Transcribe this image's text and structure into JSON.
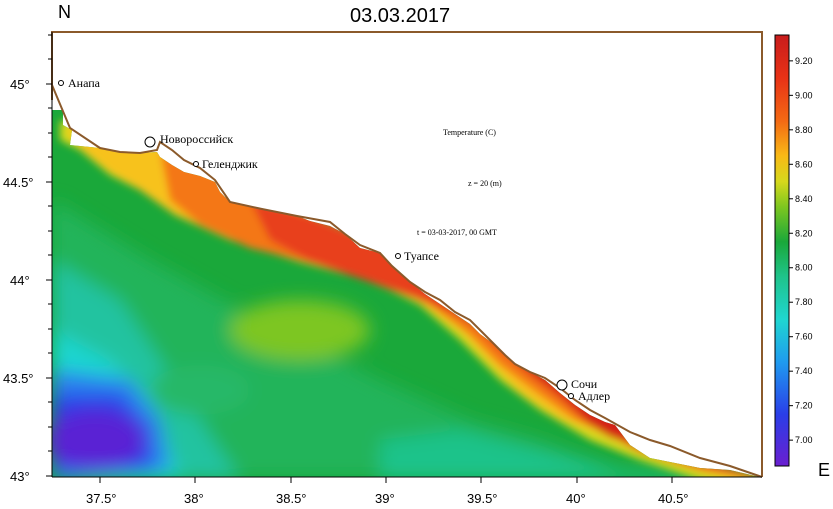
{
  "title": "03.03.2017",
  "north_label": "N",
  "east_label": "E",
  "y_ticks": [
    "45°",
    "44.5°",
    "44°",
    "43.5°",
    "43°"
  ],
  "x_ticks": [
    "37.5°",
    "38°",
    "38.5°",
    "39°",
    "39.5°",
    "40°",
    "40.5°"
  ],
  "annotations": {
    "variable": "Temperature (C)",
    "depth": "z = 20 (m)",
    "time": "t = 03-03-2017,  00 GMT"
  },
  "cities": [
    {
      "name": "Анапа",
      "lon": 37.3,
      "lat": 45.0
    },
    {
      "name": "Новороссийск",
      "lon": 37.78,
      "lat": 44.71
    },
    {
      "name": "Геленджик",
      "lon": 38.0,
      "lat": 44.59
    },
    {
      "name": "Туапсе",
      "lon": 39.07,
      "lat": 44.12
    },
    {
      "name": "Сочи",
      "lon": 39.9,
      "lat": 43.46
    },
    {
      "name": "Адлер",
      "lon": 39.95,
      "lat": 43.41
    }
  ],
  "colorbar": {
    "labels": [
      "9.20",
      "9.00",
      "8.80",
      "8.60",
      "8.40",
      "8.20",
      "8.00",
      "7.80",
      "7.60",
      "7.40",
      "7.20",
      "7.00"
    ],
    "min": 6.85,
    "max": 9.35
  },
  "colors": {
    "coastline": "#8b5a2b",
    "frame": "#000000"
  }
}
